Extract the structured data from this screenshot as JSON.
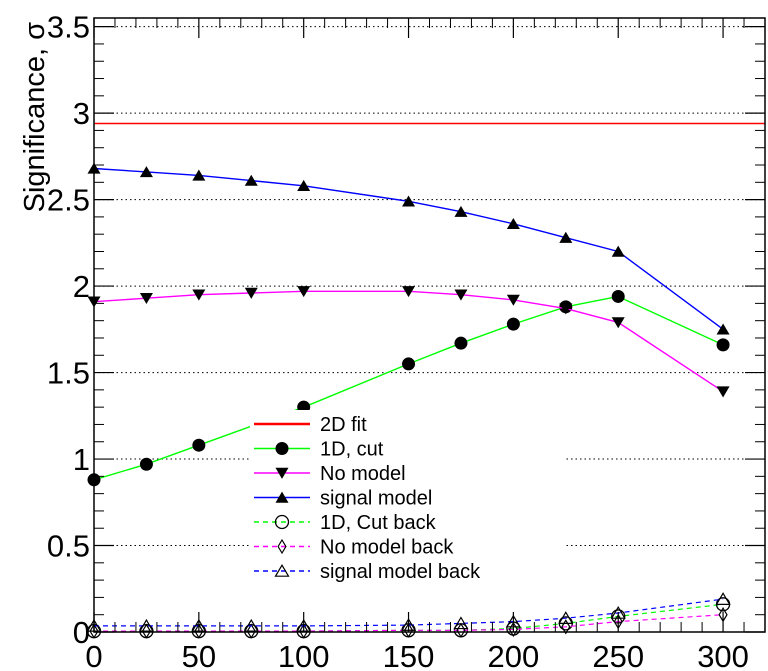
{
  "chart_data": {
    "type": "line",
    "ylabel": "Significance, σ",
    "xlabel": "",
    "xlim": [
      0,
      320
    ],
    "ylim": [
      0,
      3.55
    ],
    "x_ticks": [
      "0",
      "50",
      "100",
      "150",
      "200",
      "250",
      "300"
    ],
    "y_ticks": [
      "0",
      "0.5",
      "1",
      "1.5",
      "2",
      "2.5",
      "3",
      "3.5"
    ],
    "grid": "horizontal dotted",
    "legend_position": "bottom-center",
    "series": [
      {
        "name": "2D fit",
        "style": "line",
        "color": "#ff0000",
        "dash": false,
        "marker": "none",
        "x": [
          0,
          320
        ],
        "y": [
          2.94,
          2.94
        ]
      },
      {
        "name": "1D, cut",
        "style": "line",
        "color": "#00ff00",
        "dash": false,
        "marker": "filled-circle",
        "x": [
          0,
          25,
          50,
          100,
          150,
          175,
          200,
          225,
          250,
          300
        ],
        "y": [
          0.88,
          0.97,
          1.08,
          1.3,
          1.55,
          1.67,
          1.78,
          1.88,
          1.94,
          1.66
        ]
      },
      {
        "name": "No model",
        "style": "line",
        "color": "#ff00ff",
        "dash": false,
        "marker": "filled-triangle-down",
        "x": [
          0,
          25,
          50,
          75,
          100,
          150,
          175,
          200,
          225,
          250,
          300
        ],
        "y": [
          1.91,
          1.93,
          1.95,
          1.96,
          1.97,
          1.97,
          1.95,
          1.92,
          1.87,
          1.79,
          1.39
        ]
      },
      {
        "name": "signal model",
        "style": "line",
        "color": "#0000ff",
        "dash": false,
        "marker": "filled-triangle-up",
        "x": [
          0,
          25,
          50,
          75,
          100,
          150,
          175,
          200,
          225,
          250,
          300
        ],
        "y": [
          2.68,
          2.66,
          2.64,
          2.61,
          2.58,
          2.49,
          2.43,
          2.36,
          2.28,
          2.2,
          1.75
        ]
      },
      {
        "name": "1D, Cut back",
        "style": "line",
        "color": "#00ff00",
        "dash": true,
        "marker": "open-circle",
        "x": [
          0,
          25,
          50,
          75,
          100,
          150,
          175,
          200,
          225,
          250,
          300
        ],
        "y": [
          0.005,
          0.005,
          0.005,
          0.005,
          0.005,
          0.01,
          0.01,
          0.02,
          0.05,
          0.09,
          0.16
        ]
      },
      {
        "name": "No model back",
        "style": "line",
        "color": "#ff00ff",
        "dash": true,
        "marker": "open-diamond",
        "x": [
          0,
          25,
          50,
          75,
          100,
          150,
          175,
          200,
          225,
          250,
          300
        ],
        "y": [
          0.005,
          0.005,
          0.005,
          0.005,
          0.005,
          0.01,
          0.01,
          0.015,
          0.03,
          0.06,
          0.1
        ]
      },
      {
        "name": "signal model back",
        "style": "line",
        "color": "#0000ff",
        "dash": true,
        "marker": "open-triangle-up",
        "x": [
          0,
          25,
          50,
          75,
          100,
          150,
          175,
          200,
          225,
          250,
          300
        ],
        "y": [
          0.035,
          0.035,
          0.035,
          0.035,
          0.035,
          0.04,
          0.05,
          0.06,
          0.08,
          0.11,
          0.19
        ]
      }
    ]
  }
}
